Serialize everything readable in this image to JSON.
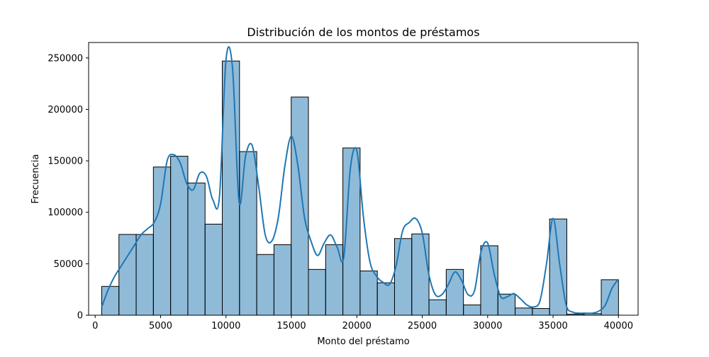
{
  "chart_data": {
    "type": "bar",
    "title": "Distribución de los montos de préstamos",
    "xlabel": "Monto del préstamo",
    "ylabel": "Frecuencia",
    "xlim": [
      -500,
      41500
    ],
    "ylim": [
      0,
      265000
    ],
    "xticks": [
      0,
      5000,
      10000,
      15000,
      20000,
      25000,
      30000,
      35000,
      40000
    ],
    "yticks": [
      0,
      50000,
      100000,
      150000,
      200000,
      250000
    ],
    "grid": false,
    "legend": "none",
    "bin_edges": [
      500,
      1816.67,
      3133.33,
      4450,
      5766.67,
      7083.33,
      8400,
      9716.67,
      11033.33,
      12350,
      13666.67,
      14983.33,
      16300,
      17616.67,
      18933.33,
      20250,
      21566.67,
      22883.33,
      24200,
      25516.67,
      26833.33,
      28150,
      29466.67,
      30783.33,
      32100,
      33416.67,
      34733.33,
      36050,
      37366.67,
      38683.33,
      40000
    ],
    "values": [
      28000,
      78500,
      78500,
      144000,
      154500,
      128500,
      88500,
      247000,
      159000,
      59000,
      68500,
      212000,
      44500,
      68500,
      162500,
      43000,
      31500,
      74500,
      79000,
      15000,
      44500,
      10000,
      67500,
      20500,
      7000,
      6500,
      93500,
      1000,
      1500,
      34500
    ],
    "kde": {
      "x": [
        500,
        1000,
        1500,
        2000,
        2500,
        3000,
        3500,
        4000,
        4500,
        5000,
        5500,
        6000,
        6500,
        7000,
        7500,
        8000,
        8500,
        9000,
        9500,
        10000,
        10500,
        11000,
        11500,
        12000,
        12500,
        13000,
        13500,
        14000,
        14500,
        15000,
        15500,
        16000,
        16500,
        17000,
        17500,
        18000,
        18500,
        19000,
        19500,
        20000,
        20500,
        21000,
        21500,
        22000,
        22500,
        23000,
        23500,
        24000,
        24500,
        25000,
        25500,
        26000,
        26500,
        27000,
        27500,
        28000,
        28500,
        29000,
        29500,
        30000,
        30500,
        31000,
        31500,
        32000,
        32500,
        33000,
        33500,
        34000,
        34500,
        35000,
        35500,
        36000,
        36500,
        37000,
        37500,
        38000,
        38500,
        39000,
        39500,
        40000
      ],
      "y": [
        8000,
        25000,
        38000,
        48000,
        58000,
        68000,
        78000,
        84000,
        90000,
        108000,
        150000,
        156000,
        148000,
        128000,
        122000,
        138000,
        135000,
        112000,
        115000,
        248000,
        240000,
        110000,
        155000,
        165000,
        125000,
        78000,
        72000,
        95000,
        145000,
        174000,
        145000,
        95000,
        72000,
        58000,
        70000,
        78000,
        66000,
        56000,
        142000,
        160000,
        96000,
        52000,
        38000,
        32000,
        30000,
        48000,
        82000,
        90000,
        94000,
        80000,
        40000,
        20000,
        20000,
        30000,
        42000,
        34000,
        20000,
        24000,
        62000,
        70000,
        40000,
        18000,
        18000,
        21000,
        16000,
        10000,
        8000,
        14000,
        50000,
        94000,
        50000,
        10000,
        3000,
        2000,
        2000,
        2000,
        4000,
        10000,
        26000,
        35000
      ]
    },
    "colors": {
      "bar_fill": "#1f77b4",
      "bar_fill_opacity": 0.5,
      "bar_edge": "#000000",
      "kde_line": "#1f77b4"
    }
  }
}
